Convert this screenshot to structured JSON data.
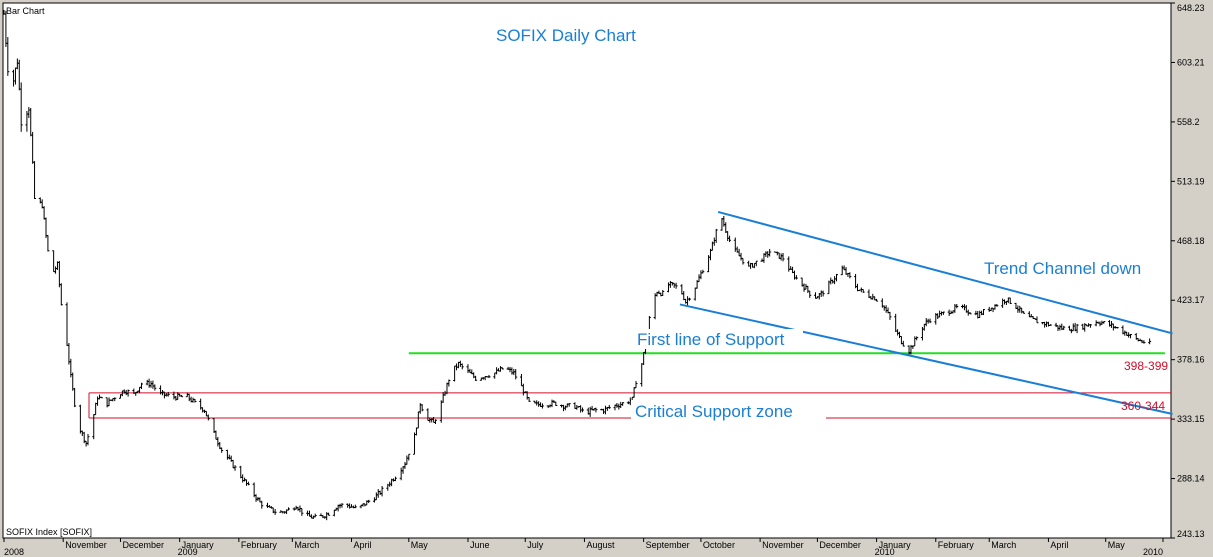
{
  "chart_data": {
    "type": "bar",
    "title": "SOFIX Daily Chart",
    "top_left_label": "Bar Chart",
    "bottom_left_label": "SOFIX Index [SOFIX]",
    "ylim": [
      243.13,
      648.23
    ],
    "xlim": [
      "2008-10-01",
      "2010-05-31"
    ],
    "grid": false,
    "y_ticks": [
      {
        "value": 648.23,
        "label": "648.23"
      },
      {
        "value": 603.21,
        "label": "603.21"
      },
      {
        "value": 558.2,
        "label": "558.2"
      },
      {
        "value": 513.19,
        "label": "513.19"
      },
      {
        "value": 468.18,
        "label": "468.18"
      },
      {
        "value": 423.17,
        "label": "423.17"
      },
      {
        "value": 378.16,
        "label": "378.16"
      },
      {
        "value": 333.15,
        "label": "333.15"
      },
      {
        "value": 288.14,
        "label": "288.14"
      },
      {
        "value": 243.13,
        "label": "243.13"
      }
    ],
    "x_ticks": [
      {
        "date": "2008-10-01",
        "label": "2008"
      },
      {
        "date": "2008-11-01",
        "label": "November"
      },
      {
        "date": "2008-12-01",
        "label": "December"
      },
      {
        "date": "2009-01-01",
        "label": "January",
        "year": "2009"
      },
      {
        "date": "2009-02-01",
        "label": "February"
      },
      {
        "date": "2009-03-01",
        "label": "March"
      },
      {
        "date": "2009-04-01",
        "label": "April"
      },
      {
        "date": "2009-05-01",
        "label": "May"
      },
      {
        "date": "2009-06-01",
        "label": "June"
      },
      {
        "date": "2009-07-01",
        "label": "July"
      },
      {
        "date": "2009-08-01",
        "label": "August"
      },
      {
        "date": "2009-09-01",
        "label": "September"
      },
      {
        "date": "2009-10-01",
        "label": "October"
      },
      {
        "date": "2009-11-01",
        "label": "November"
      },
      {
        "date": "2009-12-01",
        "label": "December"
      },
      {
        "date": "2010-01-01",
        "label": "January",
        "year": "2010"
      },
      {
        "date": "2010-02-01",
        "label": "February"
      },
      {
        "date": "2010-03-01",
        "label": "March"
      },
      {
        "date": "2010-04-01",
        "label": "April"
      },
      {
        "date": "2010-05-01",
        "label": "May"
      },
      {
        "date": "2010-05-31",
        "label": "2010"
      }
    ],
    "price_path": [
      [
        "2008-10-01",
        640
      ],
      [
        "2008-10-03",
        600
      ],
      [
        "2008-10-06",
        590
      ],
      [
        "2008-10-08",
        605
      ],
      [
        "2008-10-10",
        560
      ],
      [
        "2008-10-14",
        570
      ],
      [
        "2008-10-17",
        500
      ],
      [
        "2008-10-21",
        495
      ],
      [
        "2008-10-24",
        460
      ],
      [
        "2008-10-27",
        445
      ],
      [
        "2008-10-29",
        450
      ],
      [
        "2008-10-31",
        420
      ],
      [
        "2008-11-03",
        390
      ],
      [
        "2008-11-05",
        365
      ],
      [
        "2008-11-07",
        345
      ],
      [
        "2008-11-10",
        325
      ],
      [
        "2008-11-13",
        315
      ],
      [
        "2008-11-16",
        330
      ],
      [
        "2008-11-19",
        350
      ],
      [
        "2008-11-24",
        345
      ],
      [
        "2008-11-28",
        350
      ],
      [
        "2008-12-03",
        355
      ],
      [
        "2008-12-08",
        352
      ],
      [
        "2008-12-12",
        360
      ],
      [
        "2008-12-17",
        360
      ],
      [
        "2008-12-22",
        352
      ],
      [
        "2008-12-29",
        350
      ],
      [
        "2009-01-05",
        350
      ],
      [
        "2009-01-10",
        344
      ],
      [
        "2009-01-14",
        340
      ],
      [
        "2009-01-18",
        325
      ],
      [
        "2009-01-23",
        310
      ],
      [
        "2009-01-28",
        300
      ],
      [
        "2009-02-02",
        290
      ],
      [
        "2009-02-07",
        280
      ],
      [
        "2009-02-12",
        270
      ],
      [
        "2009-02-17",
        265
      ],
      [
        "2009-02-22",
        262
      ],
      [
        "2009-02-28",
        265
      ],
      [
        "2009-03-03",
        268
      ],
      [
        "2009-03-08",
        260
      ],
      [
        "2009-03-14",
        258
      ],
      [
        "2009-03-20",
        262
      ],
      [
        "2009-03-25",
        268
      ],
      [
        "2009-03-30",
        268
      ],
      [
        "2009-04-04",
        265
      ],
      [
        "2009-04-09",
        270
      ],
      [
        "2009-04-14",
        275
      ],
      [
        "2009-04-19",
        282
      ],
      [
        "2009-04-24",
        290
      ],
      [
        "2009-04-29",
        300
      ],
      [
        "2009-05-04",
        320
      ],
      [
        "2009-05-07",
        345
      ],
      [
        "2009-05-10",
        335
      ],
      [
        "2009-05-14",
        330
      ],
      [
        "2009-05-18",
        345
      ],
      [
        "2009-05-23",
        368
      ],
      [
        "2009-05-27",
        375
      ],
      [
        "2009-05-31",
        370
      ],
      [
        "2009-06-05",
        364
      ],
      [
        "2009-06-10",
        366
      ],
      [
        "2009-06-15",
        368
      ],
      [
        "2009-06-20",
        372
      ],
      [
        "2009-06-25",
        368
      ],
      [
        "2009-06-30",
        355
      ],
      [
        "2009-07-03",
        345
      ],
      [
        "2009-07-07",
        344
      ],
      [
        "2009-07-12",
        345
      ],
      [
        "2009-07-17",
        345
      ],
      [
        "2009-07-22",
        343
      ],
      [
        "2009-07-27",
        343
      ],
      [
        "2009-08-01",
        338
      ],
      [
        "2009-08-06",
        340
      ],
      [
        "2009-08-11",
        340
      ],
      [
        "2009-08-16",
        343
      ],
      [
        "2009-08-21",
        345
      ],
      [
        "2009-08-26",
        348
      ],
      [
        "2009-08-28",
        362
      ],
      [
        "2009-08-31",
        375
      ],
      [
        "2009-09-03",
        398
      ],
      [
        "2009-09-05",
        420
      ],
      [
        "2009-09-08",
        430
      ],
      [
        "2009-09-11",
        428
      ],
      [
        "2009-09-14",
        435
      ],
      [
        "2009-09-17",
        434
      ],
      [
        "2009-09-20",
        432
      ],
      [
        "2009-09-23",
        422
      ],
      [
        "2009-09-27",
        430
      ],
      [
        "2009-09-30",
        440
      ],
      [
        "2009-10-03",
        450
      ],
      [
        "2009-10-06",
        460
      ],
      [
        "2009-10-09",
        475
      ],
      [
        "2009-10-12",
        485
      ],
      [
        "2009-10-15",
        472
      ],
      [
        "2009-10-18",
        462
      ],
      [
        "2009-10-22",
        455
      ],
      [
        "2009-10-26",
        448
      ],
      [
        "2009-10-30",
        452
      ],
      [
        "2009-11-03",
        456
      ],
      [
        "2009-11-06",
        460
      ],
      [
        "2009-11-09",
        458
      ],
      [
        "2009-11-13",
        455
      ],
      [
        "2009-11-17",
        445
      ],
      [
        "2009-11-21",
        438
      ],
      [
        "2009-11-25",
        432
      ],
      [
        "2009-11-29",
        425
      ],
      [
        "2009-12-03",
        428
      ],
      [
        "2009-12-07",
        435
      ],
      [
        "2009-12-11",
        442
      ],
      [
        "2009-12-14",
        447
      ],
      [
        "2009-12-18",
        440
      ],
      [
        "2009-12-22",
        432
      ],
      [
        "2009-12-26",
        428
      ],
      [
        "2009-12-31",
        425
      ],
      [
        "2010-01-04",
        420
      ],
      [
        "2010-01-08",
        410
      ],
      [
        "2010-01-11",
        400
      ],
      [
        "2010-01-14",
        392
      ],
      [
        "2010-01-18",
        385
      ],
      [
        "2010-01-22",
        395
      ],
      [
        "2010-01-26",
        405
      ],
      [
        "2010-01-30",
        410
      ],
      [
        "2010-02-03",
        412
      ],
      [
        "2010-02-08",
        415
      ],
      [
        "2010-02-13",
        418
      ],
      [
        "2010-02-18",
        415
      ],
      [
        "2010-02-23",
        412
      ],
      [
        "2010-02-28",
        416
      ],
      [
        "2010-03-05",
        420
      ],
      [
        "2010-03-10",
        424
      ],
      [
        "2010-03-14",
        420
      ],
      [
        "2010-03-19",
        412
      ],
      [
        "2010-03-24",
        408
      ],
      [
        "2010-03-29",
        406
      ],
      [
        "2010-04-03",
        404
      ],
      [
        "2010-04-08",
        402
      ],
      [
        "2010-04-13",
        402
      ],
      [
        "2010-04-18",
        403
      ],
      [
        "2010-04-22",
        405
      ],
      [
        "2010-04-27",
        407
      ],
      [
        "2010-05-02",
        405
      ],
      [
        "2010-05-07",
        402
      ],
      [
        "2010-05-12",
        398
      ],
      [
        "2010-05-16",
        394
      ],
      [
        "2010-05-20",
        392
      ],
      [
        "2010-05-24",
        390
      ]
    ],
    "annotations": {
      "trend_channel_label": "Trend Channel down",
      "first_support_label": "First line of Support",
      "critical_zone_label": "Critical Support zone",
      "range_label_1": "398-399",
      "range_label_2": "360-344"
    },
    "lines": {
      "trend_upper": {
        "from": [
          "2009-10-10",
          490
        ],
        "to": [
          "2010-06-05",
          398
        ],
        "color": "#1a7fd4"
      },
      "trend_lower": {
        "from": [
          "2009-09-20",
          420
        ],
        "to": [
          "2010-06-05",
          337
        ],
        "color": "#1a7fd4"
      },
      "support": {
        "from": [
          "2009-05-01",
          383
        ],
        "to": [
          "2010-06-01",
          383
        ],
        "color": "#22dd22"
      },
      "zone_top": {
        "value": 353,
        "color": "#d0102b"
      },
      "zone_bottom": {
        "value": 334,
        "color": "#d0102b"
      }
    }
  }
}
